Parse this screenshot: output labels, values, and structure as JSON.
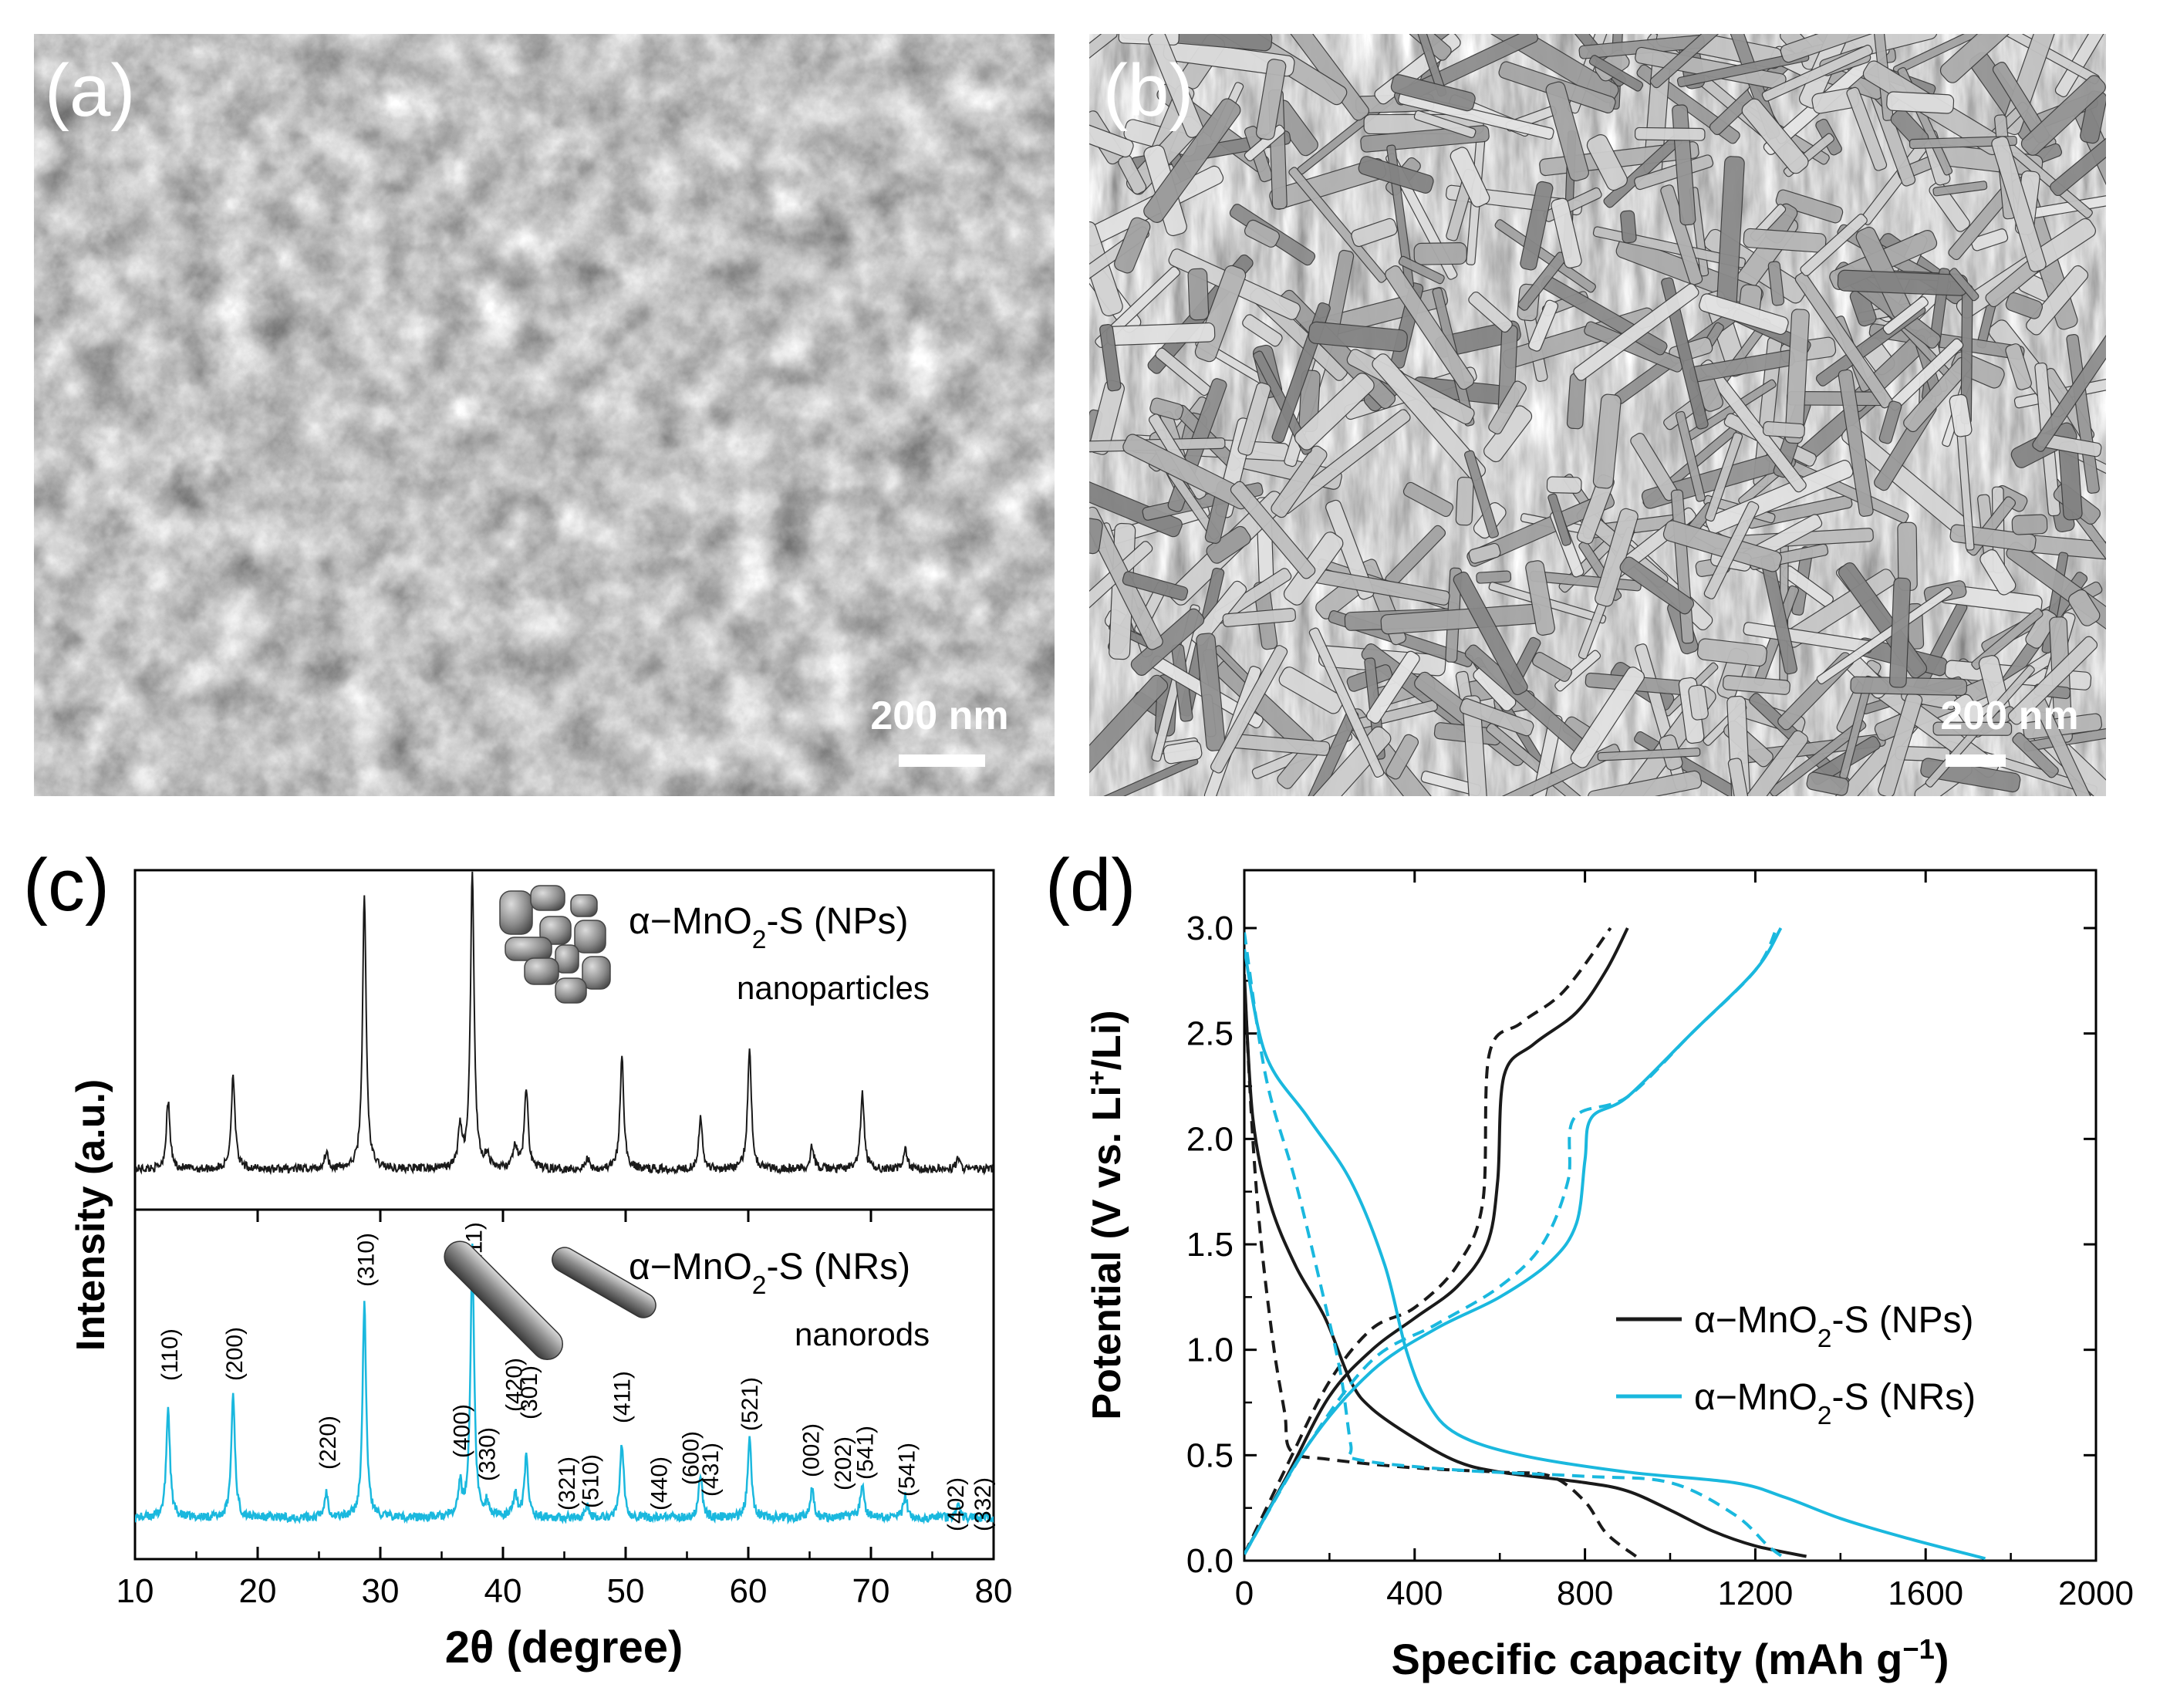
{
  "panels": {
    "a": {
      "label": "(a)",
      "scale_bar": "200 nm",
      "image": "SEM micrograph of aggregated nanoparticles"
    },
    "b": {
      "label": "(b)",
      "scale_bar": "200 nm",
      "image": "SEM micrograph of nanorods"
    },
    "c": {
      "label": "(c)"
    },
    "d": {
      "label": "(d)"
    }
  },
  "chart_data": [
    {
      "panel": "c",
      "type": "line",
      "xlabel": "2θ (degree)",
      "ylabel": "Intensity (a.u.)",
      "xlim": [
        10,
        80
      ],
      "xticks": [
        10,
        20,
        30,
        40,
        50,
        60,
        70,
        80
      ],
      "series": [
        {
          "name": "α−MnO2-S (NPs)",
          "subtitle": "nanoparticles",
          "color": "#1a1a1a",
          "peaks": [
            {
              "x": 12.7,
              "h": 0.2
            },
            {
              "x": 18.0,
              "h": 0.28
            },
            {
              "x": 25.6,
              "h": 0.05
            },
            {
              "x": 28.7,
              "h": 0.8
            },
            {
              "x": 36.5,
              "h": 0.12
            },
            {
              "x": 37.5,
              "h": 0.88
            },
            {
              "x": 38.7,
              "h": 0.04
            },
            {
              "x": 41.0,
              "h": 0.07
            },
            {
              "x": 41.9,
              "h": 0.24
            },
            {
              "x": 46.9,
              "h": 0.03
            },
            {
              "x": 49.7,
              "h": 0.33
            },
            {
              "x": 56.1,
              "h": 0.15
            },
            {
              "x": 60.1,
              "h": 0.36
            },
            {
              "x": 65.2,
              "h": 0.07
            },
            {
              "x": 69.3,
              "h": 0.22
            },
            {
              "x": 72.8,
              "h": 0.06
            },
            {
              "x": 77.1,
              "h": 0.03
            }
          ]
        },
        {
          "name": "α−MnO2-S (NRs)",
          "subtitle": "nanorods",
          "color": "#1ab8de",
          "peaks": [
            {
              "x": 12.7,
              "h": 0.31
            },
            {
              "x": 18.0,
              "h": 0.35
            },
            {
              "x": 25.6,
              "h": 0.07
            },
            {
              "x": 28.7,
              "h": 0.6
            },
            {
              "x": 36.5,
              "h": 0.09
            },
            {
              "x": 37.5,
              "h": 0.76
            },
            {
              "x": 38.7,
              "h": 0.04
            },
            {
              "x": 41.0,
              "h": 0.07
            },
            {
              "x": 41.9,
              "h": 0.17
            },
            {
              "x": 46.9,
              "h": 0.03
            },
            {
              "x": 49.7,
              "h": 0.21
            },
            {
              "x": 56.1,
              "h": 0.12
            },
            {
              "x": 60.1,
              "h": 0.23
            },
            {
              "x": 65.2,
              "h": 0.08
            },
            {
              "x": 69.3,
              "h": 0.1
            },
            {
              "x": 72.8,
              "h": 0.06
            },
            {
              "x": 77.1,
              "h": 0.03
            }
          ]
        }
      ],
      "hkl_labels": [
        {
          "x": 12.7,
          "label": "(110)"
        },
        {
          "x": 18.0,
          "label": "(200)"
        },
        {
          "x": 25.6,
          "label": "(220)"
        },
        {
          "x": 28.7,
          "label": "(310)"
        },
        {
          "x": 36.5,
          "label": "(400)"
        },
        {
          "x": 37.5,
          "label": "(211)"
        },
        {
          "x": 38.6,
          "label": "(330)"
        },
        {
          "x": 40.8,
          "label": "(420)"
        },
        {
          "x": 42.0,
          "label": "(301)"
        },
        {
          "x": 45.1,
          "label": "(321)"
        },
        {
          "x": 47.0,
          "label": "(510)"
        },
        {
          "x": 49.6,
          "label": "(411)"
        },
        {
          "x": 52.6,
          "label": "(440)"
        },
        {
          "x": 55.2,
          "label": "(600)"
        },
        {
          "x": 56.8,
          "label": "(431)"
        },
        {
          "x": 60.0,
          "label": "(521)"
        },
        {
          "x": 65.0,
          "label": "(002)"
        },
        {
          "x": 67.6,
          "label": "(202)"
        },
        {
          "x": 69.4,
          "label": "(541)"
        },
        {
          "x": 72.8,
          "label": "(541)"
        },
        {
          "x": 76.8,
          "label": "(402)"
        },
        {
          "x": 79.0,
          "label": "(332)"
        }
      ]
    },
    {
      "panel": "d",
      "type": "line",
      "xlabel": "Specific capacity (mAh g⁻¹)",
      "ylabel": "Potential (V vs. Li⁺/Li)",
      "xlim": [
        0,
        2000
      ],
      "ylim": [
        0,
        3.0
      ],
      "xticks": [
        0,
        400,
        800,
        1200,
        1600,
        2000
      ],
      "yticks": [
        0.0,
        0.5,
        1.0,
        1.5,
        2.0,
        2.5,
        3.0
      ],
      "legend": [
        "α−MnO2-S (NPs)",
        "α−MnO2-S (NRs)"
      ],
      "legend_position": "center-right",
      "series": [
        {
          "name": "α−MnO2-S (NPs)",
          "style": "solid",
          "role": "discharge",
          "color": "#1a1a1a",
          "points": [
            [
              0,
              2.78
            ],
            [
              20,
              2.1
            ],
            [
              60,
              1.7
            ],
            [
              120,
              1.4
            ],
            [
              190,
              1.15
            ],
            [
              250,
              0.85
            ],
            [
              300,
              0.72
            ],
            [
              400,
              0.58
            ],
            [
              500,
              0.47
            ],
            [
              600,
              0.42
            ],
            [
              800,
              0.37
            ],
            [
              900,
              0.33
            ],
            [
              1000,
              0.24
            ],
            [
              1100,
              0.14
            ],
            [
              1200,
              0.07
            ],
            [
              1320,
              0.02
            ]
          ]
        },
        {
          "name": "α−MnO2-S (NPs)",
          "style": "solid",
          "role": "charge",
          "color": "#1a1a1a",
          "points": [
            [
              0,
              0.03
            ],
            [
              100,
              0.4
            ],
            [
              200,
              0.78
            ],
            [
              300,
              1.0
            ],
            [
              400,
              1.15
            ],
            [
              500,
              1.3
            ],
            [
              570,
              1.5
            ],
            [
              595,
              1.8
            ],
            [
              610,
              2.3
            ],
            [
              680,
              2.45
            ],
            [
              780,
              2.6
            ],
            [
              850,
              2.8
            ],
            [
              900,
              3.0
            ]
          ]
        },
        {
          "name": "α−MnO2-S (NPs)",
          "style": "dashed",
          "role": "discharge",
          "color": "#1a1a1a",
          "points": [
            [
              0,
              2.75
            ],
            [
              20,
              2.0
            ],
            [
              40,
              1.5
            ],
            [
              70,
              1.0
            ],
            [
              95,
              0.7
            ],
            [
              110,
              0.52
            ],
            [
              200,
              0.48
            ],
            [
              400,
              0.44
            ],
            [
              600,
              0.42
            ],
            [
              720,
              0.4
            ],
            [
              800,
              0.28
            ],
            [
              850,
              0.13
            ],
            [
              920,
              0.02
            ]
          ]
        },
        {
          "name": "α−MnO2-S (NPs)",
          "style": "dashed",
          "role": "charge",
          "color": "#1a1a1a",
          "points": [
            [
              0,
              0.03
            ],
            [
              100,
              0.45
            ],
            [
              200,
              0.85
            ],
            [
              300,
              1.1
            ],
            [
              400,
              1.2
            ],
            [
              500,
              1.4
            ],
            [
              560,
              1.7
            ],
            [
              575,
              2.4
            ],
            [
              650,
              2.55
            ],
            [
              750,
              2.7
            ],
            [
              860,
              3.0
            ]
          ]
        },
        {
          "name": "α−MnO2-S (NRs)",
          "style": "solid",
          "role": "discharge",
          "color": "#1ab8de",
          "points": [
            [
              0,
              2.9
            ],
            [
              50,
              2.4
            ],
            [
              150,
              2.1
            ],
            [
              250,
              1.8
            ],
            [
              330,
              1.4
            ],
            [
              380,
              1.0
            ],
            [
              430,
              0.75
            ],
            [
              500,
              0.6
            ],
            [
              650,
              0.5
            ],
            [
              900,
              0.42
            ],
            [
              1150,
              0.37
            ],
            [
              1270,
              0.3
            ],
            [
              1400,
              0.2
            ],
            [
              1550,
              0.11
            ],
            [
              1740,
              0.01
            ]
          ]
        },
        {
          "name": "α−MnO2-S (NRs)",
          "style": "solid",
          "role": "charge",
          "color": "#1ab8de",
          "points": [
            [
              0,
              0.03
            ],
            [
              150,
              0.55
            ],
            [
              300,
              0.9
            ],
            [
              450,
              1.1
            ],
            [
              600,
              1.25
            ],
            [
              720,
              1.42
            ],
            [
              780,
              1.6
            ],
            [
              800,
              1.9
            ],
            [
              815,
              2.1
            ],
            [
              900,
              2.2
            ],
            [
              1050,
              2.5
            ],
            [
              1200,
              2.8
            ],
            [
              1260,
              3.0
            ]
          ]
        },
        {
          "name": "α−MnO2-S (NRs)",
          "style": "dashed",
          "role": "discharge",
          "color": "#1ab8de",
          "points": [
            [
              0,
              2.98
            ],
            [
              50,
              2.3
            ],
            [
              120,
              1.8
            ],
            [
              180,
              1.3
            ],
            [
              225,
              0.9
            ],
            [
              250,
              0.55
            ],
            [
              265,
              0.48
            ],
            [
              500,
              0.43
            ],
            [
              800,
              0.4
            ],
            [
              1000,
              0.37
            ],
            [
              1150,
              0.22
            ],
            [
              1230,
              0.07
            ],
            [
              1270,
              0.01
            ]
          ]
        },
        {
          "name": "α−MnO2-S (NRs)",
          "style": "dashed",
          "role": "charge",
          "color": "#1ab8de",
          "points": [
            [
              0,
              0.03
            ],
            [
              150,
              0.55
            ],
            [
              300,
              0.95
            ],
            [
              450,
              1.12
            ],
            [
              600,
              1.3
            ],
            [
              700,
              1.5
            ],
            [
              760,
              1.8
            ],
            [
              775,
              2.1
            ],
            [
              900,
              2.2
            ],
            [
              1050,
              2.5
            ],
            [
              1200,
              2.8
            ],
            [
              1250,
              3.0
            ]
          ]
        }
      ]
    }
  ],
  "colors": {
    "nps": "#1a1a1a",
    "nrs": "#1ab8de"
  }
}
